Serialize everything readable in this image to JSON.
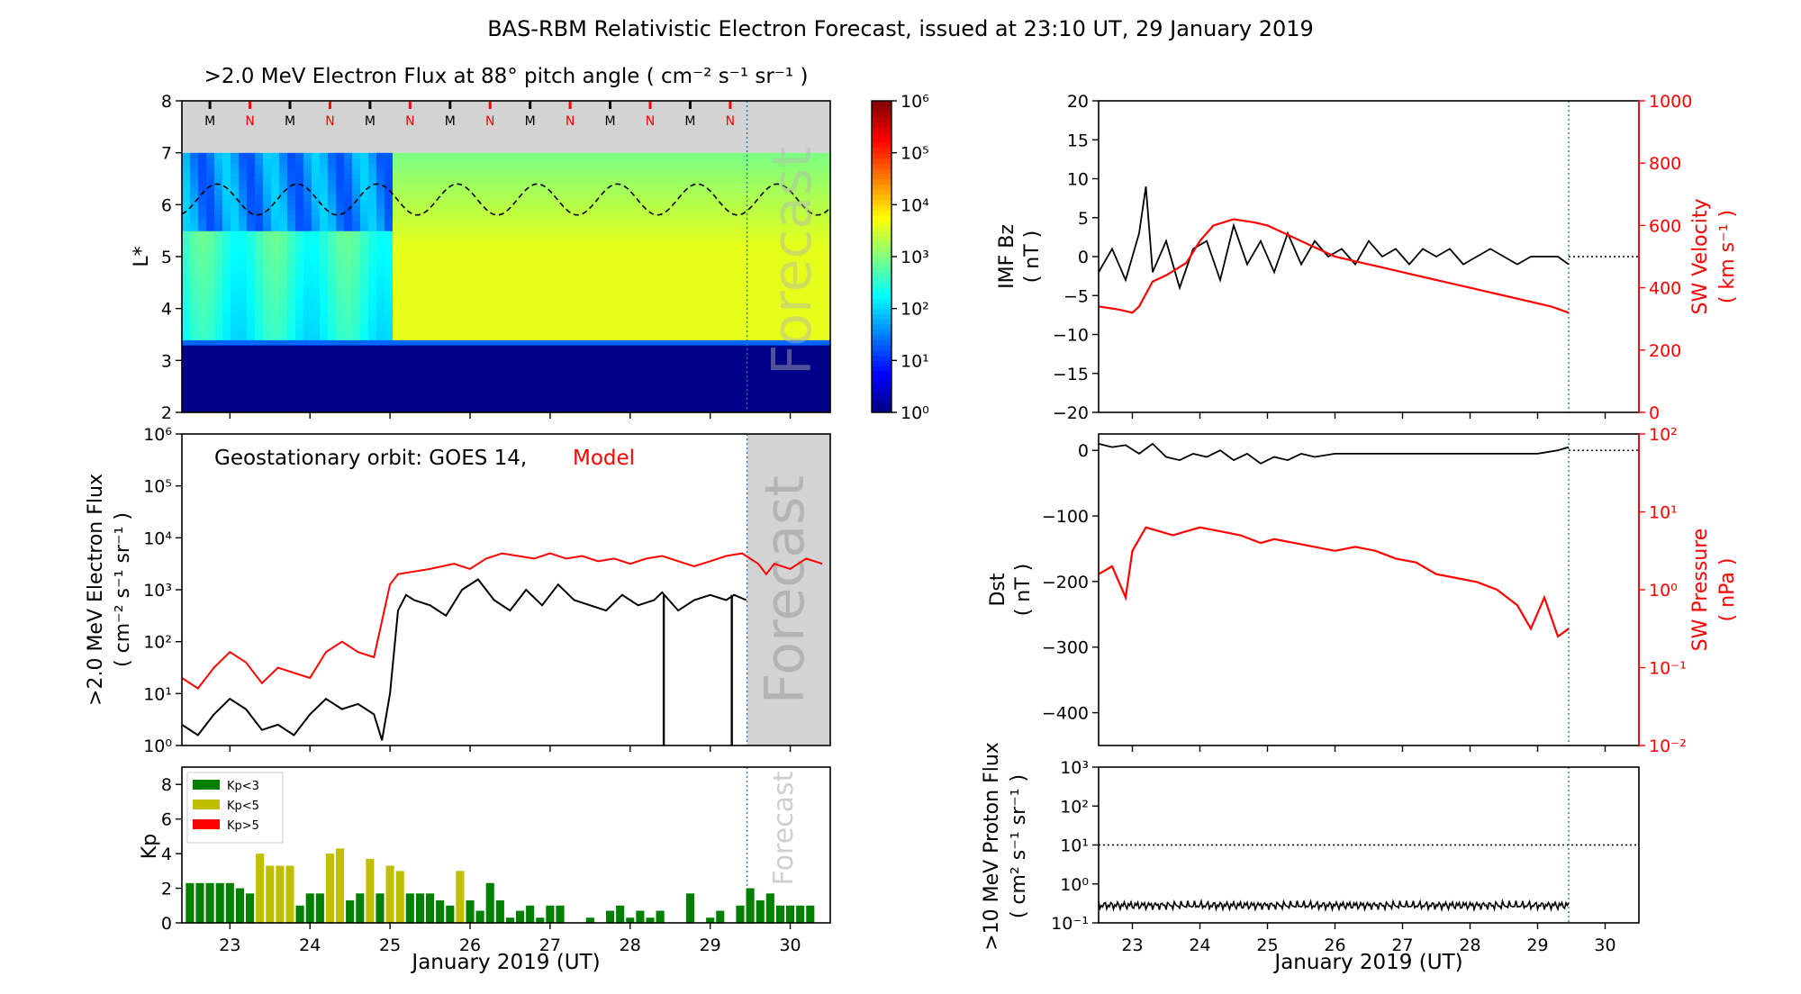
{
  "page": {
    "title": "BAS-RBM Relativistic Electron Forecast, issued at 23:10 UT, 29 January 2019"
  },
  "colors": {
    "model_red": "#ff0000",
    "observed_black": "#000000",
    "kp_low": "#008000",
    "kp_mid": "#bfbf00",
    "kp_high": "#ff0000",
    "forecast_shade": "#d3d3d3",
    "forecast_line": "#1f77b4",
    "mlt_marker_n": "#ff0000",
    "mlt_marker_m": "#000000"
  },
  "chart_data": [
    {
      "type": "heatmap",
      "title": ">2.0 MeV Electron Flux at 88° pitch angle ( cm⁻² s⁻¹ sr⁻¹ )",
      "ylabel": "L*",
      "ylim": [
        2,
        8
      ],
      "yticks": [
        2,
        3,
        4,
        5,
        6,
        7,
        8
      ],
      "xlim": [
        22.4,
        30.5
      ],
      "colorbar": {
        "scale": "log",
        "range_exp": [
          0,
          6
        ],
        "labels": [
          "10⁰",
          "10¹",
          "10²",
          "10³",
          "10⁴",
          "10⁵",
          "10⁶"
        ]
      },
      "mlt_markers": [
        "M",
        "N",
        "M",
        "N",
        "M",
        "N",
        "M",
        "N",
        "M",
        "N",
        "M",
        "N",
        "M",
        "N"
      ],
      "forecast_start": 29.46,
      "forecast_text": "Forecast"
    },
    {
      "type": "line",
      "annotation": "Geostationary orbit:   GOES 14,",
      "annotation_model": "Model",
      "ylabel": ">2.0 MeV Electron Flux",
      "ylabel_units": "( cm⁻² s⁻¹ sr⁻¹ )",
      "yscale": "log",
      "ylim_exp": [
        0,
        6
      ],
      "ytick_labels": [
        "10⁰",
        "10¹",
        "10²",
        "10³",
        "10⁴",
        "10⁵",
        "10⁶"
      ],
      "xlim": [
        22.4,
        30.5
      ],
      "forecast_start": 29.46,
      "forecast_text": "Forecast",
      "series": [
        {
          "name": "Model",
          "x": [
            22.4,
            22.6,
            22.8,
            23.0,
            23.2,
            23.4,
            23.6,
            23.8,
            24.0,
            24.2,
            24.4,
            24.6,
            24.8,
            24.9,
            25.0,
            25.1,
            25.3,
            25.5,
            25.8,
            26.0,
            26.2,
            26.4,
            26.6,
            26.8,
            27.0,
            27.2,
            27.4,
            27.6,
            27.8,
            28.0,
            28.2,
            28.4,
            28.6,
            28.8,
            29.0,
            29.2,
            29.4,
            29.6,
            29.7,
            29.8,
            30.0,
            30.2,
            30.4
          ],
          "y_exp": [
            1.3,
            1.1,
            1.5,
            1.8,
            1.6,
            1.2,
            1.5,
            1.4,
            1.3,
            1.8,
            2.0,
            1.8,
            1.7,
            2.4,
            3.1,
            3.3,
            3.35,
            3.4,
            3.5,
            3.4,
            3.6,
            3.7,
            3.65,
            3.6,
            3.7,
            3.6,
            3.65,
            3.55,
            3.6,
            3.5,
            3.6,
            3.65,
            3.55,
            3.45,
            3.55,
            3.65,
            3.7,
            3.5,
            3.3,
            3.5,
            3.4,
            3.6,
            3.5
          ]
        },
        {
          "name": "GOES 14",
          "x": [
            22.4,
            22.6,
            22.8,
            23.0,
            23.2,
            23.4,
            23.6,
            23.8,
            24.0,
            24.2,
            24.4,
            24.6,
            24.8,
            24.9,
            25.0,
            25.1,
            25.2,
            25.3,
            25.5,
            25.7,
            25.9,
            26.1,
            26.3,
            26.5,
            26.7,
            26.9,
            27.1,
            27.3,
            27.5,
            27.7,
            27.9,
            28.1,
            28.3,
            28.4,
            28.6,
            28.8,
            29.0,
            29.2,
            29.3,
            29.45
          ],
          "y_exp": [
            0.4,
            0.2,
            0.6,
            0.9,
            0.7,
            0.3,
            0.4,
            0.2,
            0.6,
            0.9,
            0.7,
            0.8,
            0.6,
            0.1,
            1.0,
            2.6,
            2.9,
            2.8,
            2.7,
            2.5,
            3.0,
            3.2,
            2.8,
            2.6,
            3.0,
            2.7,
            3.1,
            2.8,
            2.7,
            2.6,
            2.9,
            2.7,
            2.8,
            2.95,
            2.6,
            2.8,
            2.9,
            2.8,
            2.9,
            2.8
          ]
        }
      ],
      "dropouts": [
        28.42,
        29.27
      ]
    },
    {
      "type": "bar",
      "ylabel": "Kp",
      "ylim": [
        0,
        9
      ],
      "yticks": [
        0,
        2,
        4,
        6,
        8
      ],
      "xlim": [
        22.4,
        30.5
      ],
      "xticks": [
        23,
        24,
        25,
        26,
        27,
        28,
        29,
        30
      ],
      "xlabel": "January 2019 (UT)",
      "legend": [
        "Kp<3",
        "Kp<5",
        "Kp>5"
      ],
      "forecast_start": 29.46,
      "forecast_text": "Forecast",
      "x": [
        22.5,
        22.625,
        22.75,
        22.875,
        23.0,
        23.125,
        23.25,
        23.375,
        23.5,
        23.625,
        23.75,
        23.875,
        24.0,
        24.125,
        24.25,
        24.375,
        24.5,
        24.625,
        24.75,
        24.875,
        25.0,
        25.125,
        25.25,
        25.375,
        25.5,
        25.625,
        25.75,
        25.875,
        26.0,
        26.125,
        26.25,
        26.375,
        26.5,
        26.625,
        26.75,
        26.875,
        27.0,
        27.125,
        27.25,
        27.375,
        27.5,
        27.625,
        27.75,
        27.875,
        28.0,
        28.125,
        28.25,
        28.375,
        28.5,
        28.625,
        28.75,
        28.875,
        29.0,
        29.125,
        29.25,
        29.375,
        29.5,
        29.625,
        29.75,
        29.875,
        30.0,
        30.125,
        30.25
      ],
      "values": [
        2.3,
        2.3,
        2.3,
        2.3,
        2.3,
        2.0,
        1.7,
        4.0,
        3.3,
        3.3,
        3.3,
        1.0,
        1.7,
        1.7,
        4.0,
        4.3,
        1.3,
        1.7,
        3.7,
        1.7,
        3.3,
        3.0,
        1.7,
        1.7,
        1.7,
        1.3,
        1.0,
        3.0,
        1.3,
        0.7,
        2.3,
        1.3,
        0.3,
        0.7,
        1.0,
        0.3,
        1.0,
        1.0,
        0,
        0,
        0.3,
        0,
        0.7,
        1.0,
        0.3,
        0.7,
        0.3,
        0.7,
        0,
        0,
        1.7,
        0,
        0.3,
        0.7,
        0,
        1.0,
        2.0,
        1.3,
        1.7,
        1.0,
        1.0,
        1.0,
        1.0
      ]
    },
    {
      "type": "line",
      "ylabel": "IMF Bz",
      "ylabel_units": "( nT )",
      "ylim": [
        -20,
        20
      ],
      "yticks": [
        -20,
        -15,
        -10,
        -5,
        0,
        5,
        10,
        15,
        20
      ],
      "y2label": "SW Velocity",
      "y2label_units": "( km s⁻¹ )",
      "y2lim": [
        0,
        1000
      ],
      "y2ticks": [
        0,
        200,
        400,
        600,
        800,
        1000
      ],
      "xlim": [
        22.5,
        30.5
      ],
      "forecast_start": 29.46,
      "series": [
        {
          "name": "IMF Bz",
          "x": [
            22.5,
            22.7,
            22.9,
            23.1,
            23.2,
            23.3,
            23.5,
            23.7,
            23.9,
            24.1,
            24.3,
            24.5,
            24.7,
            24.9,
            25.1,
            25.3,
            25.5,
            25.7,
            25.9,
            26.1,
            26.3,
            26.5,
            26.7,
            26.9,
            27.1,
            27.3,
            27.5,
            27.7,
            27.9,
            28.1,
            28.3,
            28.5,
            28.7,
            28.9,
            29.1,
            29.3,
            29.46
          ],
          "y": [
            -2,
            1,
            -3,
            3,
            9,
            -2,
            2,
            -4,
            1,
            2,
            -3,
            4,
            -1,
            2,
            -2,
            3,
            -1,
            2,
            0,
            1,
            -1,
            2,
            0,
            1,
            -1,
            1,
            0,
            1,
            -1,
            0,
            1,
            0,
            -1,
            0,
            0,
            0,
            -1
          ]
        },
        {
          "name": "SW Velocity",
          "x": [
            22.5,
            22.8,
            23.0,
            23.1,
            23.3,
            23.5,
            23.8,
            24.0,
            24.2,
            24.5,
            24.8,
            25.0,
            25.3,
            25.6,
            26.0,
            26.4,
            26.8,
            27.2,
            27.6,
            28.0,
            28.4,
            28.8,
            29.2,
            29.46
          ],
          "y": [
            340,
            330,
            320,
            340,
            420,
            440,
            480,
            550,
            600,
            620,
            610,
            600,
            570,
            540,
            500,
            480,
            460,
            440,
            420,
            400,
            380,
            360,
            340,
            320
          ]
        }
      ]
    },
    {
      "type": "line",
      "ylabel": "Dst",
      "ylabel_units": "( nT )",
      "ylim": [
        -450,
        25
      ],
      "yticks": [
        -400,
        -300,
        -200,
        -100,
        0
      ],
      "y2label": "SW Pressure",
      "y2label_units": "( nPa )",
      "y2scale": "log",
      "y2lim_exp": [
        -2,
        2
      ],
      "y2tick_labels": [
        "10⁻²",
        "10⁻¹",
        "10⁰",
        "10¹",
        "10²"
      ],
      "xlim": [
        22.5,
        30.5
      ],
      "forecast_start": 29.46,
      "series": [
        {
          "name": "Dst",
          "x": [
            22.5,
            22.7,
            22.9,
            23.1,
            23.3,
            23.5,
            23.7,
            23.9,
            24.1,
            24.3,
            24.5,
            24.7,
            24.9,
            25.1,
            25.3,
            25.5,
            25.7,
            26.0,
            26.5,
            27.0,
            27.5,
            28.0,
            28.5,
            29.0,
            29.3,
            29.46
          ],
          "y": [
            10,
            5,
            8,
            -5,
            10,
            -10,
            -15,
            -5,
            -10,
            0,
            -15,
            -5,
            -20,
            -10,
            -15,
            -5,
            -10,
            -5,
            -5,
            -5,
            -5,
            -5,
            -5,
            -5,
            0,
            5
          ]
        },
        {
          "name": "SW Pressure",
          "x": [
            22.5,
            22.7,
            22.9,
            23.0,
            23.2,
            23.4,
            23.6,
            23.8,
            24.0,
            24.3,
            24.6,
            24.9,
            25.1,
            25.4,
            25.7,
            26.0,
            26.3,
            26.6,
            26.9,
            27.2,
            27.5,
            27.8,
            28.1,
            28.4,
            28.7,
            28.9,
            29.1,
            29.3,
            29.46
          ],
          "y_exp": [
            0.2,
            0.3,
            -0.1,
            0.5,
            0.8,
            0.75,
            0.7,
            0.75,
            0.8,
            0.75,
            0.7,
            0.6,
            0.65,
            0.6,
            0.55,
            0.5,
            0.55,
            0.5,
            0.4,
            0.35,
            0.2,
            0.15,
            0.1,
            0.0,
            -0.2,
            -0.5,
            -0.1,
            -0.6,
            -0.5
          ]
        }
      ]
    },
    {
      "type": "line",
      "ylabel": ">10 MeV Proton Flux",
      "ylabel_units": "( cm² s⁻¹ sr⁻¹ )",
      "yscale": "log",
      "ylim_exp": [
        -1,
        3
      ],
      "ytick_labels": [
        "10⁻¹",
        "10⁰",
        "10¹",
        "10²",
        "10³"
      ],
      "xlim": [
        22.5,
        30.5
      ],
      "xticks": [
        23,
        24,
        25,
        26,
        27,
        28,
        29,
        30
      ],
      "xlabel": "January 2019 (UT)",
      "threshold_exp": 1,
      "forecast_start": 29.46,
      "series": [
        {
          "name": ">10 MeV Proton Flux",
          "x": [
            22.5,
            29.46
          ],
          "y_exp": [
            -0.55,
            -0.55
          ]
        }
      ]
    }
  ]
}
